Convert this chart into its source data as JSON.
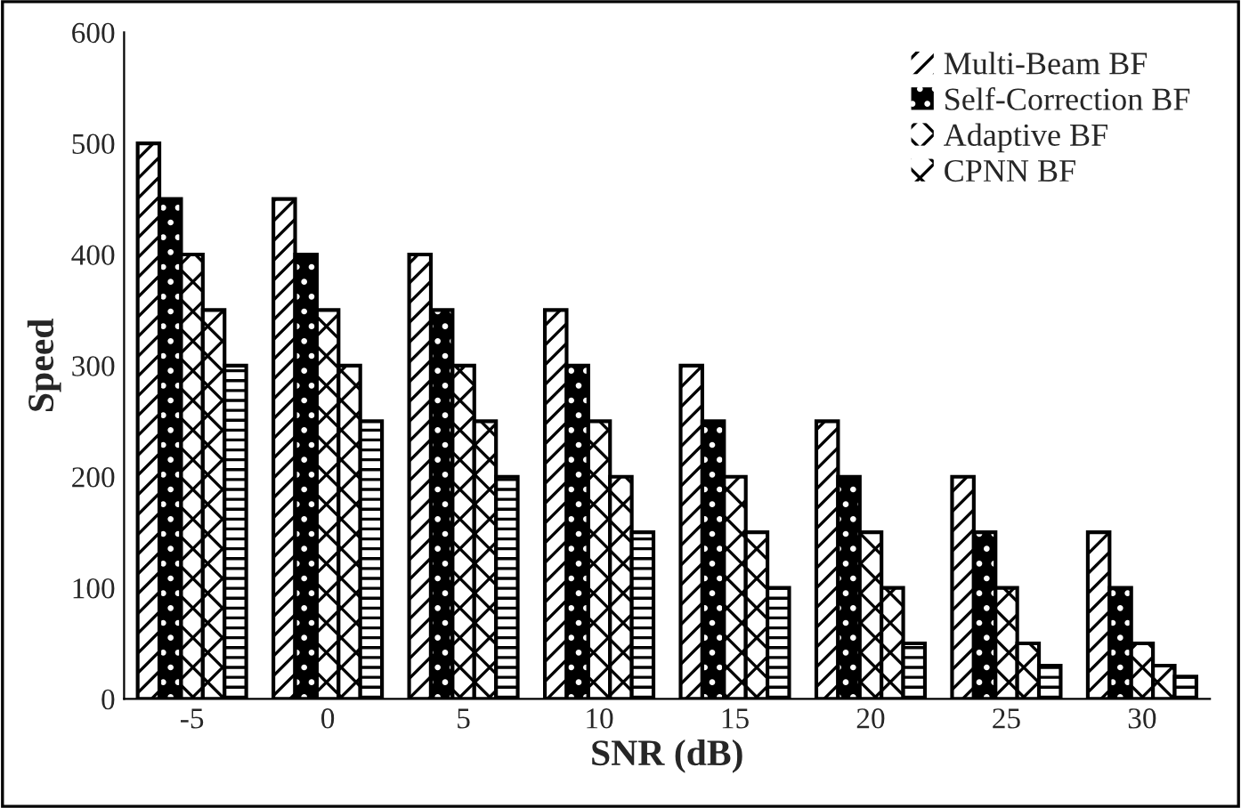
{
  "chart_data": {
    "type": "bar",
    "xlabel": "SNR (dB)",
    "ylabel": "Speed",
    "categories": [
      "-5",
      "0",
      "5",
      "10",
      "15",
      "20",
      "25",
      "30"
    ],
    "series": [
      {
        "name": "Multi-Beam BF",
        "color": "#ffffff",
        "values": [
          500,
          450,
          400,
          350,
          300,
          250,
          200,
          150
        ]
      },
      {
        "name": "Self-Correction BF",
        "color": "#000000",
        "values": [
          450,
          400,
          350,
          300,
          250,
          200,
          150,
          100
        ]
      },
      {
        "name": "Adaptive BF",
        "color": "#ffffff",
        "values": [
          400,
          350,
          300,
          250,
          200,
          150,
          100,
          50
        ]
      },
      {
        "name": "CPNN BF",
        "color": "#ffffff",
        "values": [
          350,
          300,
          250,
          200,
          150,
          100,
          50,
          30
        ]
      },
      {
        "color": "#ffffff",
        "values": [
          300,
          250,
          200,
          150,
          100,
          50,
          30,
          20
        ]
      }
    ],
    "ylim": [
      0,
      600
    ],
    "yticks": [
      0,
      100,
      200,
      300,
      400,
      500,
      600
    ],
    "grid": false,
    "legend": "top right"
  }
}
